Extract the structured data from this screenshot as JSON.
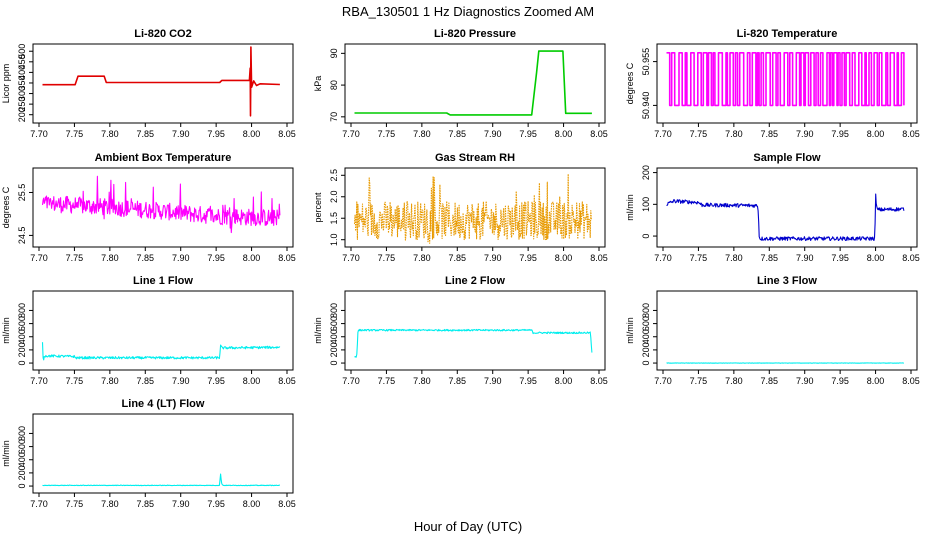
{
  "figure": {
    "title": "RBA_130501  1 Hz Diagnostics Zoomed AM",
    "xlabel": "Hour of Day (UTC)"
  },
  "chart_data": [
    {
      "id": "co2",
      "type": "line",
      "title": "Li-820 CO2",
      "ylabel": "Licor ppm",
      "color": "#e00000",
      "style": "line",
      "xlim": [
        7.7,
        8.05
      ],
      "ylim": [
        175,
        520
      ],
      "xticks": [
        7.7,
        7.75,
        7.8,
        7.85,
        7.9,
        7.95,
        8.0,
        8.05
      ],
      "xtick_labels": [
        "7.70",
        "7.75",
        "7.80",
        "7.85",
        "7.90",
        "7.95",
        "8.00",
        "8.05"
      ],
      "yticks": [
        200,
        250,
        300,
        350,
        400,
        450,
        500
      ],
      "ytick_labels": [
        "200",
        "250",
        "300",
        "350",
        "400",
        "450",
        "500"
      ],
      "points": [
        [
          7.705,
          342
        ],
        [
          7.751,
          342
        ],
        [
          7.755,
          382
        ],
        [
          7.792,
          382
        ],
        [
          7.795,
          352
        ],
        [
          7.955,
          352
        ],
        [
          7.958,
          362
        ],
        [
          7.997,
          362
        ],
        [
          7.998,
          420
        ],
        [
          7.9985,
          195
        ],
        [
          7.999,
          520
        ],
        [
          8.0,
          330
        ],
        [
          8.003,
          360
        ],
        [
          8.007,
          338
        ],
        [
          8.012,
          346
        ],
        [
          8.04,
          343
        ]
      ]
    },
    {
      "id": "pressure",
      "type": "line",
      "title": "Li-820 Pressure",
      "ylabel": "kPa",
      "color": "#00cc00",
      "style": "line",
      "xlim": [
        7.7,
        8.05
      ],
      "ylim": [
        69,
        92
      ],
      "xticks": [
        7.7,
        7.75,
        7.8,
        7.85,
        7.9,
        7.95,
        8.0,
        8.05
      ],
      "xtick_labels": [
        "7.70",
        "7.75",
        "7.80",
        "7.85",
        "7.90",
        "7.95",
        "8.00",
        "8.05"
      ],
      "yticks": [
        70,
        80,
        90
      ],
      "ytick_labels": [
        "70",
        "80",
        "90"
      ],
      "points": [
        [
          7.705,
          71.2
        ],
        [
          7.835,
          71.2
        ],
        [
          7.84,
          70.6
        ],
        [
          7.955,
          70.6
        ],
        [
          7.962,
          84
        ],
        [
          7.965,
          90.7
        ],
        [
          7.999,
          90.7
        ],
        [
          8.003,
          71.1
        ],
        [
          8.04,
          71.1
        ]
      ]
    },
    {
      "id": "temperature",
      "type": "line",
      "title": "Li-820 Temperature",
      "ylabel": "degrees C",
      "color": "#ff00ff",
      "style": "switch",
      "xlim": [
        7.7,
        8.05
      ],
      "ylim": [
        50.935,
        50.96
      ],
      "levels": [
        50.94,
        50.958
      ],
      "density": 90,
      "xticks": [
        7.7,
        7.75,
        7.8,
        7.85,
        7.9,
        7.95,
        8.0,
        8.05
      ],
      "xtick_labels": [
        "7.70",
        "7.75",
        "7.80",
        "7.85",
        "7.90",
        "7.95",
        "8.00",
        "8.05"
      ],
      "yticks": [
        50.94,
        50.955
      ],
      "ytick_labels": [
        "50.940",
        "50.955"
      ]
    },
    {
      "id": "boxtemp",
      "type": "line",
      "title": "Ambient Box Temperature",
      "ylabel": "degrees C",
      "color": "#ff00ff",
      "style": "noise",
      "xlim": [
        7.7,
        8.05
      ],
      "ylim": [
        24.3,
        26.0
      ],
      "xticks": [
        7.7,
        7.75,
        7.8,
        7.85,
        7.9,
        7.95,
        8.0,
        8.05
      ],
      "xtick_labels": [
        "7.70",
        "7.75",
        "7.80",
        "7.85",
        "7.90",
        "7.95",
        "8.00",
        "8.05"
      ],
      "yticks": [
        24.5,
        25.5
      ],
      "ytick_labels": [
        "24.5",
        "25.5"
      ],
      "trend": [
        [
          7.705,
          25.25
        ],
        [
          7.85,
          25.1
        ],
        [
          7.95,
          24.95
        ],
        [
          8.04,
          24.9
        ]
      ],
      "noise_amp": 0.2,
      "spike_amp": 0.55
    },
    {
      "id": "rh",
      "type": "line",
      "title": "Gas Stream RH",
      "ylabel": "percent",
      "color": "#e89a00",
      "style": "noise-dotted",
      "xlim": [
        7.7,
        8.05
      ],
      "ylim": [
        0.9,
        2.6
      ],
      "xticks": [
        7.7,
        7.75,
        7.8,
        7.85,
        7.9,
        7.95,
        8.0,
        8.05
      ],
      "xtick_labels": [
        "7.70",
        "7.75",
        "7.80",
        "7.85",
        "7.90",
        "7.95",
        "8.00",
        "8.05"
      ],
      "yticks": [
        1.0,
        1.5,
        2.0,
        2.5
      ],
      "ytick_labels": [
        "1.0",
        "1.5",
        "2.0",
        "2.5"
      ],
      "trend": [
        [
          7.705,
          1.45
        ],
        [
          8.04,
          1.45
        ]
      ],
      "noise_amp": 0.45,
      "spike_amp": 0.85
    },
    {
      "id": "sampleflow",
      "type": "line",
      "title": "Sample Flow",
      "ylabel": "ml/min",
      "color": "#0000cc",
      "style": "step-noise",
      "xlim": [
        7.7,
        8.05
      ],
      "ylim": [
        -25,
        205
      ],
      "xticks": [
        7.7,
        7.75,
        7.8,
        7.85,
        7.9,
        7.95,
        8.0,
        8.05
      ],
      "xtick_labels": [
        "7.70",
        "7.75",
        "7.80",
        "7.85",
        "7.90",
        "7.95",
        "8.00",
        "8.05"
      ],
      "yticks": [
        0,
        100,
        200
      ],
      "ytick_labels": [
        "0",
        "100",
        "200"
      ],
      "points": [
        [
          7.705,
          100
        ],
        [
          7.715,
          110
        ],
        [
          7.75,
          106
        ],
        [
          7.755,
          98
        ],
        [
          7.834,
          96
        ],
        [
          7.836,
          -8
        ],
        [
          7.999,
          -8
        ],
        [
          8.0,
          130
        ],
        [
          8.002,
          83
        ],
        [
          8.04,
          85
        ]
      ],
      "noise_amp": 6
    },
    {
      "id": "line1",
      "type": "line",
      "title": "Line 1 Flow",
      "ylabel": "ml/min",
      "color": "#00eeee",
      "style": "step-noise",
      "xlim": [
        7.7,
        8.05
      ],
      "ylim": [
        -60,
        1050
      ],
      "xticks": [
        7.7,
        7.75,
        7.8,
        7.85,
        7.9,
        7.95,
        8.0,
        8.05
      ],
      "xtick_labels": [
        "7.70",
        "7.75",
        "7.80",
        "7.85",
        "7.90",
        "7.95",
        "8.00",
        "8.05"
      ],
      "yticks": [
        0,
        200,
        400,
        600,
        800
      ],
      "ytick_labels": [
        "0",
        "200",
        "400",
        "600",
        "800"
      ],
      "points": [
        [
          7.705,
          300
        ],
        [
          7.706,
          40
        ],
        [
          7.708,
          110
        ],
        [
          7.75,
          100
        ],
        [
          7.751,
          80
        ],
        [
          7.955,
          80
        ],
        [
          7.956,
          270
        ],
        [
          7.958,
          230
        ],
        [
          8.04,
          240
        ],
        [
          8.041,
          300
        ]
      ],
      "noise_amp": 18
    },
    {
      "id": "line2",
      "type": "line",
      "title": "Line 2 Flow",
      "ylabel": "ml/min",
      "color": "#00eeee",
      "style": "step-noise",
      "xlim": [
        7.7,
        8.05
      ],
      "ylim": [
        -60,
        1050
      ],
      "xticks": [
        7.7,
        7.75,
        7.8,
        7.85,
        7.9,
        7.95,
        8.0,
        8.05
      ],
      "xtick_labels": [
        "7.70",
        "7.75",
        "7.80",
        "7.85",
        "7.90",
        "7.95",
        "8.00",
        "8.05"
      ],
      "yticks": [
        0,
        200,
        400,
        600,
        800
      ],
      "ytick_labels": [
        "0",
        "200",
        "400",
        "600",
        "800"
      ],
      "points": [
        [
          7.708,
          100
        ],
        [
          7.71,
          500
        ],
        [
          7.955,
          500
        ],
        [
          7.957,
          460
        ],
        [
          8.038,
          460
        ],
        [
          8.04,
          150
        ]
      ],
      "noise_amp": 12
    },
    {
      "id": "line3",
      "type": "line",
      "title": "Line 3 Flow",
      "ylabel": "ml/min",
      "color": "#00eeee",
      "style": "step-noise",
      "xlim": [
        7.7,
        8.05
      ],
      "ylim": [
        -60,
        1050
      ],
      "xticks": [
        7.7,
        7.75,
        7.8,
        7.85,
        7.9,
        7.95,
        8.0,
        8.05
      ],
      "xtick_labels": [
        "7.70",
        "7.75",
        "7.80",
        "7.85",
        "7.90",
        "7.95",
        "8.00",
        "8.05"
      ],
      "yticks": [
        0,
        200,
        400,
        600,
        800
      ],
      "ytick_labels": [
        "0",
        "200",
        "400",
        "600",
        "800"
      ],
      "points": [
        [
          7.705,
          0
        ],
        [
          8.04,
          0
        ]
      ],
      "noise_amp": 3
    },
    {
      "id": "line4",
      "type": "line",
      "title": "Line 4 (LT) Flow",
      "ylabel": "ml/min",
      "color": "#00eeee",
      "style": "step-noise",
      "xlim": [
        7.7,
        8.05
      ],
      "ylim": [
        -60,
        1050
      ],
      "xticks": [
        7.7,
        7.75,
        7.8,
        7.85,
        7.9,
        7.95,
        8.0,
        8.05
      ],
      "xtick_labels": [
        "7.70",
        "7.75",
        "7.80",
        "7.85",
        "7.90",
        "7.95",
        "8.00",
        "8.05"
      ],
      "yticks": [
        0,
        200,
        400,
        600,
        800
      ],
      "ytick_labels": [
        "0",
        "200",
        "400",
        "600",
        "800"
      ],
      "points": [
        [
          7.705,
          10
        ],
        [
          7.955,
          10
        ],
        [
          7.956,
          200
        ],
        [
          7.958,
          30
        ],
        [
          7.96,
          10
        ],
        [
          8.04,
          10
        ]
      ],
      "noise_amp": 4
    }
  ]
}
